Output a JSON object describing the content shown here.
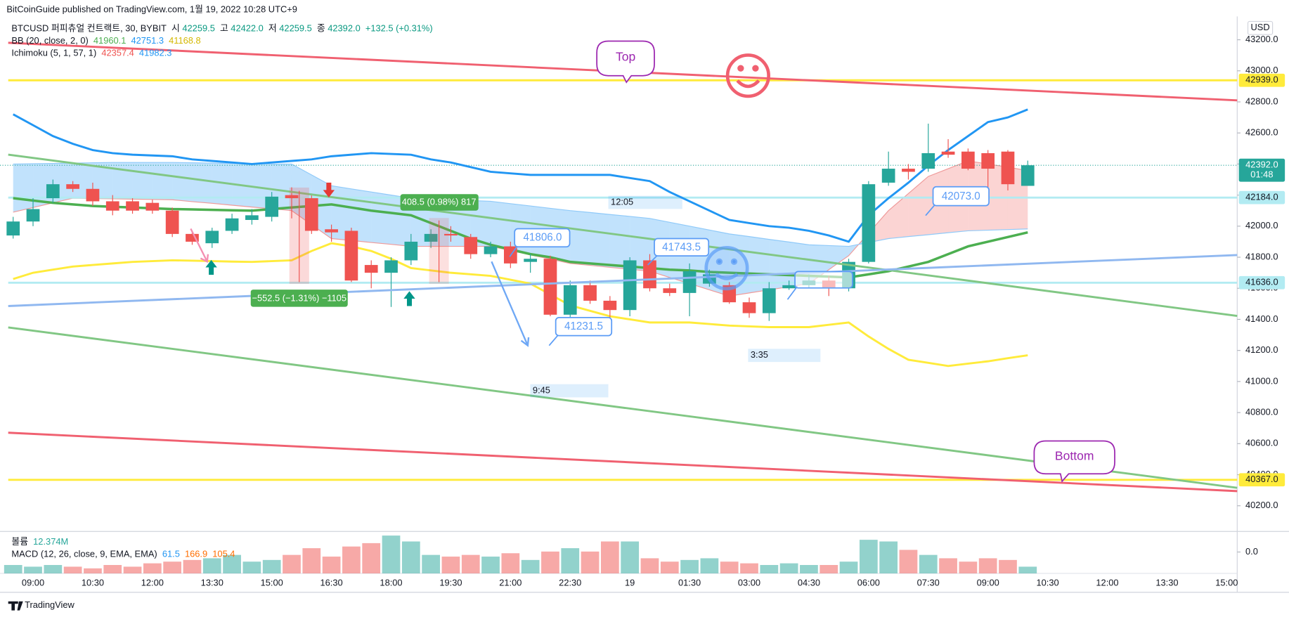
{
  "header": {
    "published": "BitCoinGuide published on TradingView.com, 1월 19, 2022 10:28 UTC+9",
    "currency": "USD",
    "brand": "TradingView"
  },
  "legend": {
    "symbol": "BTCUSD 퍼피츄얼 컨트랙트, 30, BYBIT",
    "ohlc": [
      {
        "key": "시",
        "value": "42259.5"
      },
      {
        "key": "고",
        "value": "42422.0"
      },
      {
        "key": "저",
        "value": "42259.5"
      },
      {
        "key": "종",
        "value": "42392.0"
      }
    ],
    "change": "+132.5 (+0.31%)",
    "bb": {
      "name": "BB (20, close, 2, 0)",
      "values": [
        "41960.1",
        "42751.3",
        "41168.8"
      ]
    },
    "ichimoku": {
      "name": "Ichimoku (5, 1, 57, 1)",
      "values": [
        "42357.4",
        "41982.3"
      ]
    },
    "volume": {
      "name": "볼륨",
      "value": "12.374M"
    },
    "macd": {
      "name": "MACD (12, 26, close, 9, EMA, EMA)",
      "values": [
        "61.5",
        "166.9",
        "105.4"
      ]
    }
  },
  "chart_data": {
    "type": "candlestick",
    "categories": [
      null,
      "09:00",
      null,
      null,
      "10:30",
      null,
      null,
      "12:00",
      null,
      null,
      "13:30",
      null,
      null,
      "15:00",
      null,
      null,
      "16:30",
      null,
      null,
      "18:00",
      null,
      null,
      "19:30",
      null,
      null,
      "21:00",
      null,
      null,
      "22:30",
      null,
      null,
      "19",
      null,
      null,
      "01:30",
      null,
      null,
      "03:00",
      null,
      null,
      "04:30",
      null,
      null,
      "06:00",
      null,
      null,
      "07:30",
      null,
      null,
      "09:00",
      null,
      null,
      "10:30",
      null,
      null,
      "12:00",
      null,
      null,
      "13:30",
      null,
      null,
      "15:00"
    ],
    "open": [
      41940,
      42030,
      42180,
      42270,
      42240,
      42160,
      42160,
      42150,
      42100,
      41950,
      41890,
      41970,
      42040,
      42060,
      42200,
      42180,
      41980,
      41970,
      41750,
      41700,
      41780,
      41900,
      41950,
      41930,
      41820,
      41870,
      41770,
      41790,
      41430,
      41620,
      41520,
      41460,
      41780,
      41600,
      41570,
      41630,
      41620,
      41510,
      41440,
      41600,
      41620,
      41650,
      41600,
      41770,
      42280,
      42370,
      42370,
      42480,
      42480,
      42470,
      42480,
      42259.5,
      null,
      null,
      null,
      null,
      null,
      null,
      null,
      null,
      null,
      null
    ],
    "high": [
      42060,
      42180,
      42300,
      42290,
      42280,
      42200,
      42180,
      42170,
      42120,
      41970,
      41990,
      42080,
      42110,
      42220,
      42250,
      42210,
      42010,
      41990,
      41780,
      41800,
      41950,
      41980,
      42000,
      41950,
      41900,
      41900,
      41820,
      41810,
      41650,
      41650,
      41550,
      41800,
      41820,
      41630,
      41760,
      41720,
      41640,
      41540,
      41640,
      41650,
      41690,
      41680,
      41790,
      42290,
      42480,
      42400,
      42660,
      42560,
      42500,
      42490,
      42490,
      42422,
      null,
      null,
      null,
      null,
      null,
      null,
      null,
      null,
      null,
      null
    ],
    "low": [
      41920,
      42000,
      42150,
      42220,
      42130,
      42070,
      42080,
      42080,
      41930,
      41880,
      41860,
      41950,
      42010,
      42030,
      42050,
      41950,
      41900,
      41640,
      41600,
      41480,
      41750,
      41860,
      41900,
      41790,
      41800,
      41730,
      41700,
      41420,
      41400,
      41500,
      41380,
      41420,
      41580,
      41550,
      41420,
      41610,
      41500,
      41410,
      41390,
      41590,
      41600,
      41550,
      41580,
      41760,
      42260,
      42300,
      42350,
      42440,
      42360,
      42240,
      42230,
      42259.5,
      null,
      null,
      null,
      null,
      null,
      null,
      null,
      null,
      null,
      null
    ],
    "close": [
      42030,
      42110,
      42270,
      42240,
      42160,
      42100,
      42100,
      42100,
      41950,
      41900,
      41970,
      42050,
      42070,
      42190,
      42180,
      41970,
      41960,
      41650,
      41700,
      41780,
      41900,
      41950,
      41940,
      41820,
      41870,
      41760,
      41790,
      41430,
      41620,
      41520,
      41460,
      41780,
      41600,
      41570,
      41710,
      41690,
      41510,
      41440,
      41600,
      41620,
      41650,
      41600,
      41770,
      42270,
      42370,
      42350,
      42470,
      42460,
      42370,
      42370,
      42270,
      42392,
      null,
      null,
      null,
      null,
      null,
      null,
      null,
      null,
      null,
      null
    ],
    "up_color": "#26a69a",
    "down_color": "#ef5350",
    "ylim": [
      40040,
      43350
    ],
    "yticks": [
      {
        "value": 43200,
        "label": "43200.0"
      },
      {
        "value": 43000,
        "label": "43000.0"
      },
      {
        "value": 42800,
        "label": "42800.0"
      },
      {
        "value": 42600,
        "label": "42600.0"
      },
      {
        "value": 42400,
        "label": "42400.0"
      },
      {
        "value": 42200,
        "label": "42200.0"
      },
      {
        "value": 42000,
        "label": "42000.0"
      },
      {
        "value": 41800,
        "label": "41800.0"
      },
      {
        "value": 41600,
        "label": "41600.0"
      },
      {
        "value": 41400,
        "label": "41400.0"
      },
      {
        "value": 41200,
        "label": "41200.0"
      },
      {
        "value": 41000,
        "label": "41000.0"
      },
      {
        "value": 40800,
        "label": "40800.0"
      },
      {
        "value": 40600,
        "label": "40600.0"
      },
      {
        "value": 40400,
        "label": "40400.0"
      },
      {
        "value": 40200,
        "label": "40200.0"
      }
    ],
    "grid": false,
    "bb_upper": {
      "color": "#2196f3",
      "values": [
        42720,
        42650,
        42580,
        42530,
        42490,
        42470,
        42460,
        42455,
        42450,
        42430,
        42420,
        42410,
        42400,
        42410,
        42420,
        42430,
        42450,
        42460,
        42470,
        42465,
        42460,
        42430,
        42410,
        42380,
        42350,
        42340,
        42330,
        42330,
        42330,
        42330,
        42330,
        42310,
        42290,
        42220,
        42160,
        42100,
        42040,
        42020,
        42000,
        41990,
        41970,
        41940,
        41900,
        42070,
        42180,
        42280,
        42390,
        42490,
        42580,
        42670,
        42700,
        42751.3,
        null,
        null,
        null,
        null,
        null,
        null,
        null,
        null,
        null,
        null
      ]
    },
    "bb_basis": {
      "color": "#4caf50",
      "values": [
        42180,
        42165,
        42150,
        42140,
        42130,
        42125,
        42120,
        42115,
        42110,
        42108,
        42105,
        42102,
        42100,
        42110,
        42120,
        42130,
        42140,
        42120,
        42100,
        42085,
        42070,
        42020,
        41970,
        41920,
        41880,
        41850,
        41820,
        41800,
        41770,
        41760,
        41750,
        41740,
        41730,
        41720,
        41715,
        41705,
        41700,
        41695,
        41690,
        41685,
        41680,
        41675,
        41670,
        41690,
        41710,
        41740,
        41770,
        41820,
        41870,
        41900,
        41930,
        41960.1,
        null,
        null,
        null,
        null,
        null,
        null,
        null,
        null,
        null,
        null
      ]
    },
    "bb_lower": {
      "color": "#ffeb3b",
      "values": [
        41660,
        41700,
        41720,
        41740,
        41750,
        41760,
        41770,
        41775,
        41780,
        41778,
        41775,
        41772,
        41770,
        41775,
        41780,
        41840,
        41890,
        41870,
        41840,
        41790,
        41730,
        41715,
        41700,
        41690,
        41680,
        41655,
        41630,
        41560,
        41490,
        41455,
        41420,
        41400,
        41380,
        41380,
        41380,
        41370,
        41360,
        41355,
        41350,
        41350,
        41350,
        41365,
        41380,
        41290,
        41210,
        41140,
        41120,
        41100,
        41115,
        41130,
        41150,
        41168.8,
        null,
        null,
        null,
        null,
        null,
        null,
        null,
        null,
        null,
        null
      ]
    },
    "span_a": {
      "color": "#ef9a9a",
      "values": [
        42090,
        42120,
        42150,
        42180,
        42178,
        42176,
        42174,
        42172,
        42170,
        42158,
        42147,
        42135,
        42123,
        42112,
        42100,
        42010,
        41920,
        41908,
        41895,
        41883,
        41870,
        41870,
        41870,
        41870,
        41870,
        41843,
        41815,
        41788,
        41760,
        41748,
        41735,
        41723,
        41710,
        41670,
        41630,
        41590,
        41550,
        41570,
        41590,
        41610,
        41630,
        41720,
        41810,
        41955,
        42100,
        42210,
        42320,
        42370,
        42420,
        42400,
        42380,
        42357.4,
        null,
        null,
        null,
        null,
        null,
        null,
        null,
        null,
        null,
        null
      ]
    },
    "span_b": {
      "color": "#90caf9",
      "values": [
        42400,
        42402,
        42404,
        42406,
        42408,
        42410,
        42410,
        42410,
        42410,
        42408,
        42406,
        42404,
        42402,
        42400,
        42400,
        42330,
        42260,
        42240,
        42220,
        42200,
        42180,
        42175,
        42170,
        42165,
        42160,
        42145,
        42130,
        42115,
        42100,
        42088,
        42075,
        42063,
        42050,
        42025,
        42000,
        41975,
        41950,
        41933,
        41915,
        41898,
        41880,
        41875,
        41870,
        41895,
        41920,
        41933,
        41945,
        41958,
        41970,
        41974,
        41978,
        41982.3,
        null,
        null,
        null,
        null,
        null,
        null,
        null,
        null,
        null,
        null
      ]
    },
    "cloud_up_color": "rgba(239,83,80,0.25)",
    "cloud_down_color": "rgba(33,150,243,0.28)",
    "volume": {
      "up_color": "rgba(38,166,154,0.5)",
      "down_color": "rgba(239,83,80,0.5)",
      "values": [
        15.5,
        12.4,
        15.5,
        12.4,
        9.3,
        15.5,
        12.4,
        18.6,
        21.7,
        24.8,
        27.9,
        34.1,
        21.7,
        24.8,
        34.1,
        46.5,
        31,
        49.6,
        55.8,
        69.8,
        58.9,
        34.1,
        31,
        34.1,
        31,
        37.2,
        24.8,
        40.3,
        46.5,
        40.3,
        58.9,
        58.9,
        27.9,
        21.7,
        24.8,
        27.9,
        21.7,
        18.6,
        15.5,
        18.6,
        15.5,
        15.5,
        21.7,
        62,
        58.9,
        43.4,
        34.1,
        27.9,
        21.7,
        27.9,
        24.8,
        12.374,
        null,
        null,
        null,
        null,
        null,
        null,
        null,
        null,
        null,
        null
      ]
    },
    "macd_ticks": [
      {
        "value": 0,
        "label": "0.0"
      }
    ],
    "price_lines": [
      {
        "value": 42939,
        "label": "42939.0",
        "color": "#ffeb3b"
      },
      {
        "value": 42184,
        "label": "42184.0",
        "color": "#b2ebf2"
      },
      {
        "value": 41636,
        "label": "41636.0",
        "color": "#b2ebf2"
      },
      {
        "value": 40367,
        "label": "40367.0",
        "color": "#ffeb3b"
      }
    ],
    "current_price": {
      "value": 42392,
      "label": "42392.0",
      "countdown": "01:48",
      "color": "#26a69a"
    }
  },
  "annotations": {
    "top": "Top",
    "bottom": "Bottom",
    "measure_up": "408.5 (0.98%) 817",
    "measure_down": "−552.5 (−1.31%) −1105",
    "range_1": "12:05",
    "range_2": "9:45",
    "range_3": "3:35",
    "price_1": "41806.0",
    "price_2": "41743.5",
    "price_3": "41231.5",
    "price_4": "42073.0"
  }
}
